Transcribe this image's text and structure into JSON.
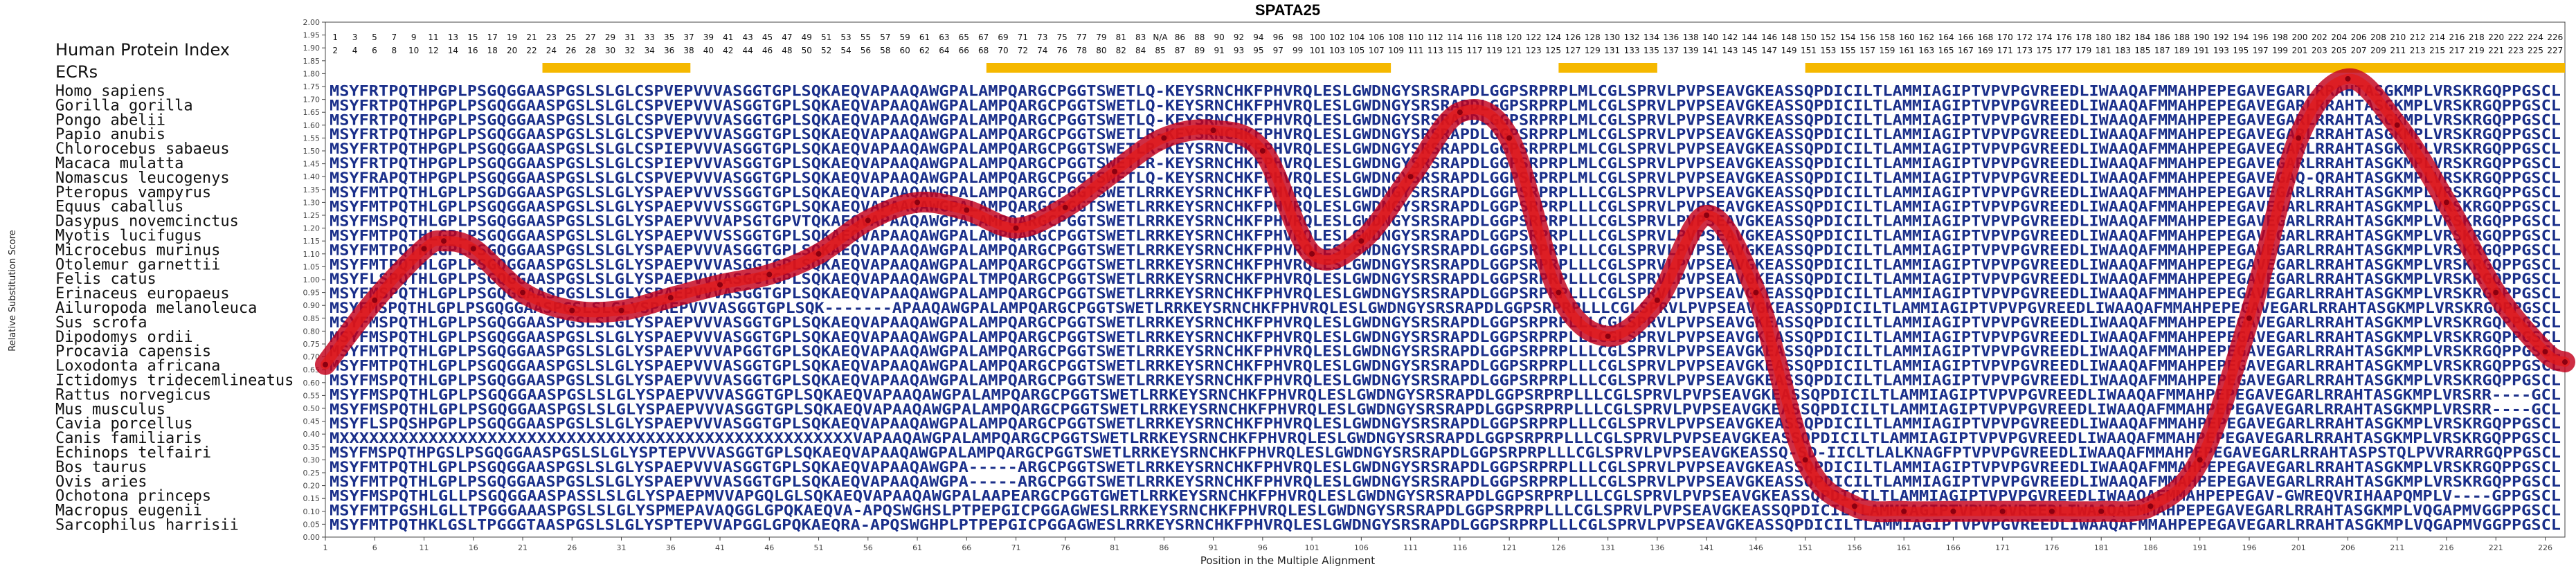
{
  "chart_data": {
    "type": "line",
    "title": "SPATA25",
    "xlabel": "Position in the Multiple Alignment",
    "ylabel": "Relative Substitution Score",
    "ylim": [
      0.0,
      2.0
    ],
    "xlim": [
      1,
      228
    ],
    "ytick_step": 0.05,
    "xticks": [
      1,
      6,
      11,
      16,
      21,
      26,
      31,
      36,
      41,
      46,
      51,
      56,
      61,
      66,
      71,
      76,
      81,
      86,
      91,
      96,
      101,
      106,
      111,
      116,
      121,
      126,
      131,
      136,
      141,
      146,
      151,
      156,
      161,
      166,
      171,
      176,
      181,
      186,
      191,
      196,
      201,
      206,
      211,
      216,
      221,
      226
    ],
    "track_labels": {
      "protein_index": "Human Protein Index",
      "ecrs": "ECRs"
    },
    "protein_index": {
      "top_row": [
        "1",
        "3",
        "5",
        "7",
        "9",
        "11",
        "13",
        "15",
        "17",
        "19",
        "21",
        "23",
        "25",
        "27",
        "29",
        "31",
        "33",
        "35",
        "37",
        "39",
        "41",
        "43",
        "45",
        "47",
        "49",
        "51",
        "53",
        "55",
        "57",
        "59",
        "61",
        "63",
        "65",
        "67",
        "69",
        "71",
        "73",
        "75",
        "77",
        "79",
        "81",
        "83",
        "N/A",
        "86",
        "88",
        "90",
        "92",
        "94",
        "96",
        "98",
        "100",
        "102",
        "104",
        "106",
        "108",
        "110",
        "112",
        "114",
        "116",
        "118",
        "120",
        "122",
        "124",
        "126",
        "128",
        "130",
        "132",
        "134",
        "136",
        "138",
        "140",
        "142",
        "144",
        "146",
        "148",
        "150",
        "152",
        "154",
        "156",
        "158",
        "160",
        "162",
        "164",
        "166",
        "168",
        "170",
        "172",
        "174",
        "176",
        "178",
        "180",
        "182",
        "184",
        "186",
        "188",
        "190",
        "192",
        "194",
        "196",
        "198",
        "200",
        "202",
        "204",
        "206",
        "208",
        "210",
        "212",
        "214",
        "216",
        "218",
        "220",
        "222",
        "224",
        "226"
      ],
      "bottom_row": [
        "2",
        "4",
        "6",
        "8",
        "10",
        "12",
        "14",
        "16",
        "18",
        "20",
        "22",
        "24",
        "26",
        "28",
        "30",
        "32",
        "34",
        "36",
        "38",
        "40",
        "42",
        "44",
        "46",
        "48",
        "50",
        "52",
        "54",
        "56",
        "58",
        "60",
        "62",
        "64",
        "66",
        "68",
        "70",
        "72",
        "74",
        "76",
        "78",
        "80",
        "82",
        "84",
        "85",
        "87",
        "89",
        "91",
        "93",
        "95",
        "97",
        "99",
        "101",
        "103",
        "105",
        "107",
        "109",
        "111",
        "113",
        "115",
        "117",
        "119",
        "121",
        "123",
        "125",
        "127",
        "129",
        "131",
        "133",
        "135",
        "137",
        "139",
        "141",
        "143",
        "145",
        "147",
        "149",
        "151",
        "153",
        "155",
        "157",
        "159",
        "161",
        "163",
        "165",
        "167",
        "169",
        "171",
        "173",
        "175",
        "177",
        "179",
        "181",
        "183",
        "185",
        "187",
        "189",
        "191",
        "193",
        "195",
        "197",
        "199",
        "201",
        "203",
        "205",
        "207",
        "209",
        "211",
        "213",
        "215",
        "217",
        "219",
        "221",
        "223",
        "225",
        "227"
      ]
    },
    "ecr_blocks": [
      [
        23,
        38
      ],
      [
        68,
        109
      ],
      [
        126,
        136
      ],
      [
        151,
        228
      ]
    ],
    "curve": {
      "x": [
        1,
        6,
        11,
        13,
        16,
        21,
        26,
        31,
        36,
        41,
        46,
        51,
        56,
        61,
        66,
        71,
        76,
        81,
        86,
        91,
        96,
        101,
        106,
        111,
        116,
        121,
        126,
        131,
        136,
        141,
        146,
        151,
        156,
        161,
        166,
        171,
        176,
        181,
        186,
        191,
        196,
        201,
        206,
        211,
        216,
        221,
        226,
        228
      ],
      "y": [
        0.67,
        0.92,
        1.12,
        1.15,
        1.12,
        0.95,
        0.88,
        0.88,
        0.93,
        0.98,
        1.02,
        1.1,
        1.23,
        1.3,
        1.27,
        1.2,
        1.28,
        1.42,
        1.55,
        1.58,
        1.5,
        1.1,
        1.15,
        1.4,
        1.65,
        1.55,
        0.95,
        0.78,
        0.92,
        1.25,
        0.95,
        0.3,
        0.12,
        0.1,
        0.1,
        0.1,
        0.1,
        0.1,
        0.12,
        0.3,
        0.85,
        1.55,
        1.78,
        1.6,
        1.3,
        0.95,
        0.72,
        0.68
      ]
    },
    "sequences": [
      {
        "name": "Homo sapiens",
        "seq": "MSYFRTPQTHPGPLPSGQGGAASPGSLSLGLCSPVEPVVVASGGTGPLSQKAEQVAPAAQAWGPALAMPQARGCPGGTSWETLQ-KEYSRNCHKFPHVRQLESLGWDNGYSRSRAPDLGGPSRPRPLMLCGLSPRVLPVPSEAVGKEASSQPDICILTLAMMIAGIPTVPVPGVREEDLIWAAQAFMMAHPEPEGAVEGARLRRAHTASGKMPLVRSKRGQPPGSCL"
      },
      {
        "name": "Gorilla gorilla",
        "seq": "MSYFRTPQTHPGPLPSGQGGAASPGSLSLGLCSPVEPVVVASGGTGPLSQKAEQVAPAAQAWGPALAMPQARGCPGGTSWETLQ-KEYSRNCHKFPHVRQLESLGWDNGYSRSRAPDLGGPSRPRPLMLCGLSPRVLPVPSEAVGKEASSQPDICILTLAMMIAGIPTVPVPGVREEDLIWAAQAFMMAHPEPEGAVEGARLRRAHTASGKMPLVRSKRGQPPGSCL"
      },
      {
        "name": "Pongo abelii",
        "seq": "MSYFRTPQTHPGPLPSGQGGAASPGSLSLGLCSPVEPVVVASGGTGPLSQKAEQVAPAAQAWGPALAMPQARGCPGGTSWETLQ-KEYSRNCHKFPHVRQLESLGWDNGYSRSRAPDLGGPSRPRPLMLCGLSPRVLPVPSEAVRKEASSQPDICILTLAMMIAGIPTVPVPGVREEDLIWAAQAFMMAHPEPEGAVEGARLRRAHTASGKMPLVRSKRGQPPGSCL"
      },
      {
        "name": "Papio anubis",
        "seq": "MSYFRTPQTHPGPLPSGQGGAASPGSLSLGLCSPVEPVVVASGGTGPLSQKAEQVAPAAQAWGPALAMPQARGCPGGTSWETLR-KEYSRNCHKFPHVRQLESLGWDNGYSRSRAPDLGGPSRPRPLMLCGLSPRVLPVPSEAVGKEASSQPDICILTLAMMIAGIPTVPVPGVREEDLIWAAQAFMMAHPEPEGAVEGARLRRAHTASGKMPLVRSKRGQPPGSCL"
      },
      {
        "name": "Chlorocebus sabaeus",
        "seq": "MSYFRTPQTHPGPLPSGQGGAASPGSLSLGLCSPIEPVVVASGGTGPLSQKAEQVAPAAQAWGPALAMPQARGCPGGTSWETLR-KEYSRNCHKFPHVRQLESLGWDNGYSRSRAPDLGGPSRPRPLMLCGLSPRVLPVPSEAVGKEASSQPDICILTLAMMIAGIPTVPVPGVREEDLIWAAQAFMMAHPEPEGAVEGARLRRAHTASGKMPLVRSKRGQPPGSCL"
      },
      {
        "name": "Macaca mulatta",
        "seq": "MSYFRTPQTHPGPLPSGQGGAASPGSLSLGLCSPIEPVVVASGGTGPLSQKAEQVAPAAQAWGPALAMPQARGCPGGTSWETLR-KEYSRNCHKFPHVRQLESLGWDNGYSRSRAPDLGGPSRPRPLMLCGLSPRVLPVPSEAVGKEASSQPDICILTLAMMIAGIPTVPVPGVREEDLIWAAQAFMMAHPEPEGAVEGARLRRAHTASGKMPLVRSKRGQPPGSCL"
      },
      {
        "name": "Nomascus leucogenys",
        "seq": "MSYFRAPQTHPGPLPSGQGGAASPGSLSLGLCSPVEPVVVASGGTGPLSQKAEQVAPAAQAWGPALAMPQARGCPGGTSWETLQ-KEYSRNCHKFPHVRQLESLGWDNGYSRSRAPDLGGPSRPRPLMLCGLSPRVLPVPSEAVGKEASSQPDICILTLAMMIAGIPTVPVPGVREEDLIWAAQAFMMAHPEPEGAVEGAQ-QRAHTASGKMPLVRSKRGQPPGSCL"
      },
      {
        "name": "Pteropus vampyrus",
        "seq": "MSYFMTPQTHLGPLPSGDGGAASPGSLSLGLYSPAEPVVVSSGGTGPLSQKAEQVAPAAQAWGPALAMPQARGCPGGTSWETLRRKEYSRNCHKFPHVRQLESLGWDNGYSRSRAPDLGGPSRPRPLLLCGLSPRVLPVPSEAVGKEASSQPDICILTLAMMIAGIPTVPVPGVREEDLIWAAQAFMMAHPEPEGAVEGARLRRAHTASGKMPLVRSKRGQPPGSCL"
      },
      {
        "name": "Equus caballus",
        "seq": "MSYFMTPQTHLGPLPSGQGGAASPGSLSLGLYSPAEPVVVSSGGTGPLSQKAEQVAPAAQAWGPALAMPQARGCPGGTSWETLRRKEYSRNCHKFPHVRQLESLGWDNGYSRSRAPDLGGPSRPRPLLLCGLSPRVLPVPSEAVGKEASSQPDICILTLAMMIAGIPTVPVPGVREEDLIWAAQAFMMAHPEPEGAVEGARLRRAHTASGKMPLVRSKRGQPPGSCL"
      },
      {
        "name": "Dasypus novemcinctus",
        "seq": "MSYFMSPQTHLGPLPSGQGGAASPGSLSLGLYSPAEPVVVAPSGTGPVTQKAEQVAPAAQAWGPALAMPQARGCPGGTSWETLRRKEYSRNCHKFPHVRQLESLGWDNGYSRSRAPDLGGPSRPRPLLLCGLSPRVLPVPSEAVGKEASSQPDICILTLAMMIAGIPTVPVPGVREEDLIWAAQAFMMAHPEPEGAVEGARLRRAHTASGKMPLVRSKRGQPPGSCL"
      },
      {
        "name": "Myotis lucifugus",
        "seq": "MSYFMTPQTHLGPLPSGQGGAASPGSLSLGLYSPAEPVVVSSGGTGPLSQKAEQVAPAAQAWGPALAMPQARGCPGGTSWETLRRKEYSRNCHKFPHVRQLESLGWDNGYSRSRAPDLGGPSRPRPLLLCGLSPRVLPVPSEAVGKEASSQPDICILTLAMMIAGIPTVPVPGVREEDLIWAAQAFMMAHPEPEGAVEGARLRRAHTASGKMPLVRSKRGQPPGSCL"
      },
      {
        "name": "Microcebus murinus",
        "seq": "MSYFMTPQTHLGPLPSGQGGAASPGSLSLGLYSPAEPVVVASGGTGPLSQKAEQVAPAAQAWGPALAMPQARGCPGGTSWETLRRKEYSRNCHKFPHVRQLESLGWDNGYSRSRAPDLGGPSRPRPLLLCGLSPRVLPVPSEAVGKEASSQPDICILTLAMMIAGIPTVPVPGVREEDLIWAAQAFMMAHPEPEGAVEGARLRRAHTASGKMPLVRSKRGQPPGSCL"
      },
      {
        "name": "Otolemur garnettii",
        "seq": "MSYFMTPQTHLGPLPSGQGGAASPGSLSLGLYSPAEPVVVASGGTGPLSQKAEQVAPAAQAWGPALAMPQARGCPGGTSWETLRRKEYSRNCHKFPHVRQLESLGWDNGYSRSRAPDLGGPSRPRPLLLCGLSPRVLPVPSEAVGKEASSQPDICILTLAMMIAGIPTVPVPGVREEDLIWAAQAFMMAHPEPEGAVEGARLRRAHTASGKMPLVRSKRGQPPGSCL"
      },
      {
        "name": "Felis catus",
        "seq": "MSYFLSPQTHLGPLPSGQGGAASPGSLSLGLYSPAEPVVVASGGTGPLSQKAEQVAPAAQAWGPALTMPQARGCPGGTSWETLRRKEYSRNCHKFPHVRQLESLGWDNGYSRSRAPDLGGPSRPRPLLLCGLSPRVLPVPSEAVGKEASSQPDICILTLAMMIAGIPTVPVPGVREEDLIWAAQAFMMAHPEPEGAVEGARLRRAHTASGKMPLVRSKRGQPPGSCL"
      },
      {
        "name": "Erinaceus europaeus",
        "seq": "MSYFMSPQTHLGPLPSGQGGAASPGSLSLGLYSPAEPVVVASGGTGPLSQKAEQVAPAAQAWGPALAMPQARGCPGGTSWETLRRKEYSRNCHKFPHVRQLESLGWDNGYSRSRAPDLGGPSRPRPLLLCGLSPRVLPVPSEAVGKEASSQPDICILTLAMMIAGIPTVPVPGVREEDLIWAAQAFMMAHPEPEGAVEGARLRRAHTASGKMPLVRSKRGQPPGSCL"
      },
      {
        "name": "Ailuropoda melanoleuca",
        "seq": "MSYFMSPQTHLGPLPSGQGGAASPGSLSLGLYSPAEPVVVASGGTGPLSQK-------APAAQAWGPALAMPQARGCPGGTSWETLRRKEYSRNCHKFPHVRQLESLGWDNGYSRSRAPDLGGPSRPRPLLLCGLSPRVLPVPSEAVGKEASSQPDICILTLAMMIAGIPTVPVPGVREEDLIWAAQAFMMAHPEPEGAVEGARLRRAHTASGKMPLVRSKRGQPPGSCL"
      },
      {
        "name": "Sus scrofa",
        "seq": "MSYFMSPQTHLGPLPSGQGGAASPGSLSLGLYSPAEPVVVASGGTGPLSQKAEQVAPAAQAWGPALAMPQARGCPGGTSWETLRRKEYSRNCHKFPHVRQLESLGWDNGYSRSRAPDLGGPSRPRPLLLCGLSPRVLPVPSEAVGKEASSQPDICILTLAMMIAGIPTVPVPGVREEDLIWAAQAFMMAHPEPEGAVEGARLRRAHTASGKMPLVRSKRGQPPGSCL"
      },
      {
        "name": "Dipodomys ordii",
        "seq": "MSYFMSPQTHLGPLPSGQGGAASPGSLSLGLYSPAEPVVVASGGTGPLSQKAEQVAPAAQAWGPALAMPQARGCPGGTSWETLRRKEYSRNCHKFPHVRQLESLGWDNGYSRSRAPDLGGPSRPRPLLLCGLSPRVLPVPSEAVGKEASSQPDICILTLAMMIAGIPTVPVPGVREEDLIWAAQAFMMAHPEPEGAVEGARLRRAHTASGKMPLVRSKRGQPPGSCL"
      },
      {
        "name": "Procavia capensis",
        "seq": "MSYFMTPQTHLGPLPSGQGGAASPGSLSLGLYSPAEPVVVAPGGTGPLSQKAEQVAPAAQAWGPALAMPQARGCPGGTSWETLRRKEYSRNCHKFPHVRQLESLGWDNGYSRSRAPDLGGPSRPRPLLLCGLSPRVLPVPSEAVGKEASSQPDICILTLAMMIAGIPTVPVPGVREEDLIWAAQAFMMAHPEPEGAVEGARLRRAHTASGKMPLVRSKRGQPPGSCL"
      },
      {
        "name": "Loxodonta africana",
        "seq": "MSYFMTPQTHLGPLPSGQGGAASPGSLSLGLYSPAEPVVVASGGTGPLSQKAEQVAPAAQAWGPALAMPQARGCPGGTSWETLRRKEYSRNCHKFPHVRQLESLGWDNGYSRSRAPDLGGPSRPRPLLLCGLSPRVLPVPSEAVGKEASSQPDICILTLAMMIAGIPTVPVPGVREEDLIWAAQAFMMAHPEPEGAVEGARLRRAHTASGKMPLVRSKRGQPPGSCL"
      },
      {
        "name": "Ictidomys tridecemlineatus",
        "seq": "MSYFMSPQTHLGPLPSGQGGAASPGSLSLGLYSPAEPVVVASGGTGPLSQKAEQVAPAAQAWGPALAMPQARGCPGGTSWETLRRKEYSRNCHKFPHVRQLESLGWDNGYSRSRAPDLGGPSRPRPLLLCGLSPRVLPVPSEAVGKEASSQPDICILTLAMMIAGIPTVPVPGVREEDLIWAAQAFMMAHPEPEGAVEGARLRRAHTASGKMPLVRSKRGQPPGSCL"
      },
      {
        "name": "Rattus norvegicus",
        "seq": "MSYFMSPQTHLGPLPSGQGGAASPGSLSLGLYSPAEPVVVASGGTGPLSQKAEQVAPAAQAWGPALAMPQARGCPGGTSWETLRRKEYSRNCHKFPHVRQLESLGWDNGYSRSRAPDLGGPSRPRPLLLCGLSPRVLPVPSEAVGKEASSQPDICILTLAMMIAGIPTVPVPGVREEDLIWAAQAFMMAHPEPEGAVEGARLRRAHTASGKMPLVRSRR----GCL"
      },
      {
        "name": "Mus musculus",
        "seq": "MSYFMSPQTHLGPLPSGQGGAASPGSLSLGLYSPAEPVVVASGGTGPLSQKAEQVAPAAQAWGPALAMPQARGCPGGTSWETLRRKEYSRNCHKFPHVRQLESLGWDNGYSRSRAPDLGGPSRPRPLLLCGLSPRVLPVPSEAVGKEASSQPDICILTLAMMIAGIPTVPVPGVREEDLIWAAQAFMMAHPEPEGAVEGARLRRAHTASGKMPLVRSRR----GCL"
      },
      {
        "name": "Cavia porcellus",
        "seq": "MSYFLSPQSHPGPLPSGQGGAASPGSLSLGLYSPAEPVVVASGGTGPLSQKAEQVAPAAQAWGPALAMPQARGCPGGTSWETLRRKEYSRNCHKFPHVRQLESLGWDNGYSRSRAPDLGGPSRPRPLLLCGLSPRVLPVPSEAVGKEASSQPDICILTLAMMIAGIPTVPVPGVREEDLIWAAQAFMMAHPEPEGAVEGARLRRAHTASGKMPLVRSKRGQPPGSCL"
      },
      {
        "name": "Canis familiaris",
        "seq": "MXXXXXXXXXXXXXXXXXXXXXXXXXXXXXXXXXXXXXXXXXXXXXXXXXXXXVAPAAQAWGPALAMPQARGCPGGTSWETLRRKEYSRNCHKFPHVRQLESLGWDNGYSRSRAPDLGGPSRPRPLLLCGLSPRVLPVPSEAVGKEASSQPDICILTLAMMIAGIPTVPVPGVREEDLIWAAQAFMMAHPEPEGAVEGARLRRAHTASGKMPLVRSKRGQPPGSCL"
      },
      {
        "name": "Echinops telfairi",
        "seq": "MSYFMSPQTHPGSLPSGQGGAASPGSLSLGLYSPTEPVVVASGGTGPLSQKAEQVAPAAQAWGPALAMPQARGCPGGTSWETLRRKEYSRNCHKFPHVRQLESLGWDNGYSRSRAPDLGGPSRPRPLLLCGLSPRVLPVPSEAVGKEASSQ-SD-IICLTLALKNAGFPTVPVPGVREEDLIWAAQAFMMAHPEPEGAVEGARLRRAHTASPSTQLPVVRARRGQPPGSCL"
      },
      {
        "name": "Bos taurus",
        "seq": "MSYFMTPQTHLGPLPSGQGGAASPGSLSLGLYSPAEPVVVASGGTGPLSQKAEQVAPAAQAWGPA-----ARGCPGGTSWETLRRKEYSRNCHKFPHVRQLESLGWDNGYSRSRAPDLGGPSRPRPLLLCGLSPRVLPVPSEAVGKEASSQPDICILTLAMMIAGIPTVPVPGVREEDLIWAAQAFMMAHPEPEGAVEGARLRRAHTASGKMPLVRSKRGQPPGSCL"
      },
      {
        "name": "Ovis aries",
        "seq": "MSYFMTPQTHLGPLPSGQGGAASPGSLSLGLYSPAEPVVVASGGTGPLSQKAEQVAPAAQAWGPA-----ARGCPGGTSWETLRRKEYSRNCHKFPHVRQLESLGWDNGYSRSRAPDLGGPSRPRPLLLCGLSPRVLPVPSEAVGKEASSQPDICILTLAMMIAGIPTVPVPGVREEDLIWAAQAFMMAHPEPEGAVEGARLRRAHTASGKMPLVRSKRGQPPGSCL"
      },
      {
        "name": "Ochotona princeps",
        "seq": "MSYFMSPQTHLGLLPSGQGGAASPASSLSLGLYSPAEPMVVAPGQLGLSQKAEQVAPAAQAWGPALAAPEARGCPGGTGWETLRRKEYSRNCHKFPHVRQLESLGWDNGYSRSRAPDLGGPSRPRPLLLCGLSPRVLPVPSEAVGKEASSQPDICILTLAMMIAGIPTVPVPGVREEDLIWAAQAFMMAHPEPEGAV-GWREQVRIHAAPQMPLV----GPPGSCL"
      },
      {
        "name": "Macropus eugenii",
        "seq": "MSYFMTPGSHLGLLTPGGGAAASPGSLSLGLYSPMEPAVAQGGLGPQKAEQVA-APQSWGHSLPTPEPGICPGGAGWESLRRKEYSRNCHKFPHVRQLESLGWDNGYSRSRAPDLGGPSRPRPLLLCGLSPRVLPVPSEAVGKEASSQPDICILTLAMMIAGIPTVPVPGVREEDLIWAAQAFMMAHPEPEGAVEGARLRRAHTASGKMPLVQGAPMVGGPPGSCL"
      },
      {
        "name": "Sarcophilus harrisii",
        "seq": "MSYFMTPQTHKLGSLTPGGGTAASPGSLSLGLYSPTEPVVAPGGLGPQKAEQRA-APQSWGHPLPTPEPGICPGGAGWESLRRKEYSRNCHKFPHVRQLESLGWDNGYSRSRAPDLGGPSRPRPLLLCGLSPRVLPVPSEAVGKEASSQPDICILTLAMMIAGIPTVPVPGVREEDLIWAAQAFMMAHPEPEGAVEGARLRRAHTASGKMPLVQGAPMVGGPPGSCL"
      }
    ],
    "colors": {
      "sequence_text": "#1a2f8a",
      "sequence_text_low": "#5d88a8",
      "curve_outer": "#c3001b",
      "curve_inner": "#e21a1a",
      "ecr_fill": "#f5b800",
      "axis": "#444444",
      "grid": "#dddddd"
    }
  }
}
